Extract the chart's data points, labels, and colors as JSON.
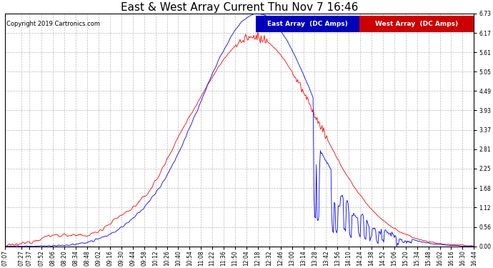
{
  "title": "East & West Array Current Thu Nov 7 16:46",
  "copyright": "Copyright 2019 Cartronics.com",
  "east_label": "East Array  (DC Amps)",
  "west_label": "West Array  (DC Amps)",
  "east_color": "#0000ff",
  "west_color": "#ff0000",
  "east_legend_bg": "#0000bb",
  "west_legend_bg": "#cc0000",
  "ylim": [
    0.0,
    6.73
  ],
  "yticks": [
    0.0,
    0.56,
    1.12,
    1.68,
    2.25,
    2.81,
    3.37,
    3.93,
    4.49,
    5.05,
    5.61,
    6.17,
    6.73
  ],
  "background_color": "#ffffff",
  "grid_color": "#bbbbbb",
  "title_fontsize": 11,
  "tick_fontsize": 5.5,
  "copyright_fontsize": 6,
  "legend_fontsize": 6.5,
  "tick_labels": [
    "07:07",
    "07:27",
    "07:37",
    "07:52",
    "08:06",
    "08:20",
    "08:34",
    "08:48",
    "09:02",
    "09:16",
    "09:30",
    "09:44",
    "09:58",
    "10:12",
    "10:26",
    "10:40",
    "10:54",
    "11:08",
    "11:22",
    "11:36",
    "11:50",
    "12:04",
    "12:18",
    "12:32",
    "12:46",
    "13:00",
    "13:14",
    "13:28",
    "13:42",
    "13:56",
    "14:10",
    "14:24",
    "14:38",
    "14:52",
    "15:06",
    "15:20",
    "15:34",
    "15:48",
    "16:02",
    "16:16",
    "16:30",
    "16:44"
  ]
}
